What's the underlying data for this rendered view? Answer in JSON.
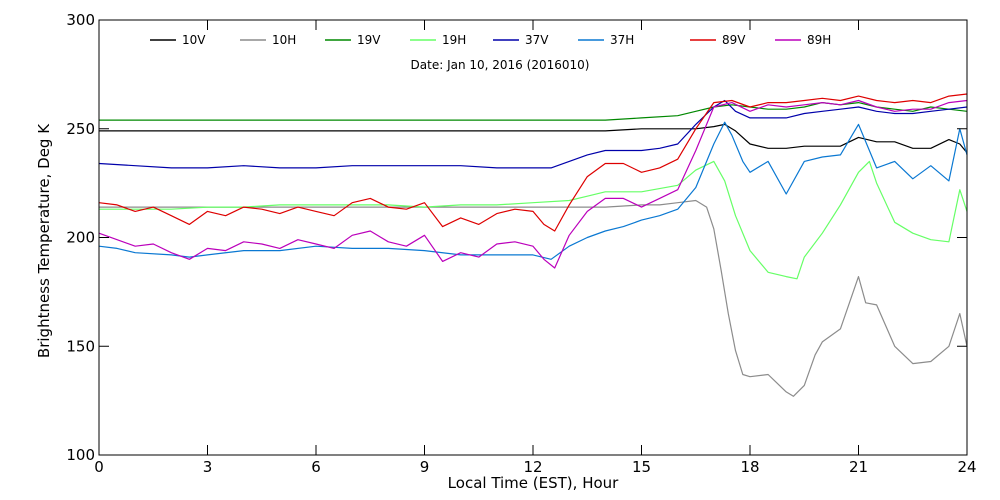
{
  "chart_data": {
    "type": "line",
    "title": "Date: Jan 10, 2016 (2016010)",
    "xlabel": "Local Time (EST), Hour",
    "ylabel": "Brightness Temperature, Deg K",
    "xlim": [
      0,
      24
    ],
    "ylim": [
      100,
      300
    ],
    "xticks": [
      0,
      3,
      6,
      9,
      12,
      15,
      18,
      21,
      24
    ],
    "yticks": [
      100,
      150,
      200,
      250,
      300
    ],
    "grid": false,
    "legend_position": "top",
    "series": [
      {
        "name": "10V",
        "color": "#000000",
        "x": [
          0,
          1,
          2,
          3,
          4,
          5,
          6,
          7,
          8,
          9,
          10,
          11,
          12,
          13,
          14,
          15,
          16,
          16.5,
          17,
          17.3,
          17.6,
          18,
          18.5,
          19,
          19.5,
          20,
          20.5,
          21,
          21.5,
          22,
          22.5,
          23,
          23.5,
          23.8,
          24
        ],
        "y": [
          249,
          249,
          249,
          249,
          249,
          249,
          249,
          249,
          249,
          249,
          249,
          249,
          249,
          249,
          249,
          250,
          250,
          250,
          251,
          252,
          249,
          243,
          241,
          241,
          242,
          242,
          242,
          246,
          244,
          244,
          241,
          241,
          245,
          243,
          239
        ]
      },
      {
        "name": "10H",
        "color": "#8c8c8c",
        "x": [
          0,
          1,
          2,
          3,
          4,
          5,
          6,
          7,
          8,
          9,
          10,
          11,
          12,
          13,
          14,
          15,
          15.5,
          16,
          16.5,
          16.8,
          17,
          17.2,
          17.4,
          17.6,
          17.8,
          18,
          18.5,
          19,
          19.2,
          19.5,
          19.8,
          20,
          20.5,
          21,
          21.2,
          21.5,
          22,
          22.5,
          23,
          23.5,
          23.8,
          24
        ],
        "y": [
          214,
          214,
          214,
          214,
          214,
          214,
          214,
          214,
          214,
          214,
          214,
          214,
          214,
          214,
          214,
          215,
          215,
          216,
          217,
          214,
          204,
          185,
          165,
          148,
          137,
          136,
          137,
          129,
          127,
          132,
          146,
          152,
          158,
          182,
          170,
          169,
          150,
          142,
          143,
          150,
          165,
          150
        ]
      },
      {
        "name": "19V",
        "color": "#008800",
        "x": [
          0,
          2,
          4,
          6,
          8,
          10,
          12,
          13,
          14,
          15,
          16,
          16.5,
          17,
          17.5,
          18,
          18.5,
          19,
          19.5,
          20,
          20.5,
          21,
          21.5,
          22,
          22.5,
          23,
          23.5,
          24
        ],
        "y": [
          254,
          254,
          254,
          254,
          254,
          254,
          254,
          254,
          254,
          255,
          256,
          258,
          260,
          261,
          260,
          259,
          259,
          260,
          262,
          261,
          262,
          260,
          259,
          258,
          260,
          259,
          258
        ]
      },
      {
        "name": "19H",
        "color": "#66ff66",
        "x": [
          0,
          1,
          2,
          3,
          4,
          5,
          6,
          7,
          8,
          9,
          10,
          11,
          12,
          13,
          13.5,
          14,
          15,
          16,
          16.5,
          17,
          17.3,
          17.6,
          18,
          18.5,
          19,
          19.3,
          19.5,
          20,
          20.5,
          21,
          21.3,
          21.5,
          22,
          22.5,
          23,
          23.5,
          23.8,
          24
        ],
        "y": [
          213,
          213,
          213,
          214,
          214,
          215,
          215,
          215,
          215,
          214,
          215,
          215,
          216,
          217,
          219,
          221,
          221,
          224,
          231,
          235,
          226,
          210,
          194,
          184,
          182,
          181,
          191,
          202,
          215,
          230,
          235,
          225,
          207,
          202,
          199,
          198,
          222,
          212
        ]
      },
      {
        "name": "37V",
        "color": "#0000aa",
        "x": [
          0,
          1,
          2,
          3,
          4,
          5,
          6,
          7,
          8,
          9,
          10,
          11,
          12,
          12.5,
          13,
          13.5,
          14,
          15,
          15.5,
          16,
          16.5,
          17,
          17.3,
          17.6,
          18,
          18.5,
          19,
          19.5,
          20,
          20.5,
          21,
          21.5,
          22,
          22.5,
          23,
          23.5,
          24
        ],
        "y": [
          234,
          233,
          232,
          232,
          233,
          232,
          232,
          233,
          233,
          233,
          233,
          232,
          232,
          232,
          235,
          238,
          240,
          240,
          241,
          243,
          252,
          260,
          263,
          258,
          255,
          255,
          255,
          257,
          258,
          259,
          260,
          258,
          257,
          257,
          258,
          259,
          260
        ]
      },
      {
        "name": "37H",
        "color": "#0a78d2",
        "x": [
          0,
          0.5,
          1,
          2,
          2.5,
          3,
          4,
          5,
          6,
          7,
          8,
          9,
          10,
          11,
          12,
          12.5,
          13,
          13.5,
          14,
          14.5,
          15,
          15.5,
          16,
          16.5,
          17,
          17.3,
          17.5,
          17.8,
          18,
          18.5,
          19,
          19.5,
          20,
          20.5,
          21,
          21.5,
          22,
          22.5,
          23,
          23.5,
          23.8,
          24
        ],
        "y": [
          196,
          195,
          193,
          192,
          191,
          192,
          194,
          194,
          196,
          195,
          195,
          194,
          192,
          192,
          192,
          190,
          196,
          200,
          203,
          205,
          208,
          210,
          213,
          223,
          243,
          253,
          247,
          235,
          230,
          235,
          220,
          235,
          237,
          238,
          252,
          232,
          235,
          227,
          233,
          226,
          250,
          238
        ]
      },
      {
        "name": "89V",
        "color": "#dd0000",
        "x": [
          0,
          0.5,
          1,
          1.5,
          2,
          2.5,
          3,
          3.5,
          4,
          4.5,
          5,
          5.5,
          6,
          6.5,
          7,
          7.5,
          8,
          8.5,
          9,
          9.5,
          10,
          10.5,
          11,
          11.5,
          12,
          12.3,
          12.6,
          13,
          13.5,
          14,
          14.5,
          15,
          15.5,
          16,
          16.5,
          17,
          17.5,
          18,
          18.5,
          19,
          19.5,
          20,
          20.5,
          21,
          21.5,
          22,
          22.5,
          23,
          23.5,
          24
        ],
        "y": [
          216,
          215,
          212,
          214,
          210,
          206,
          212,
          210,
          214,
          213,
          211,
          214,
          212,
          210,
          216,
          218,
          214,
          213,
          216,
          205,
          209,
          206,
          211,
          213,
          212,
          206,
          203,
          215,
          228,
          234,
          234,
          230,
          232,
          236,
          250,
          262,
          263,
          260,
          262,
          262,
          263,
          264,
          263,
          265,
          263,
          262,
          263,
          262,
          265,
          266
        ]
      },
      {
        "name": "89H",
        "color": "#bb00bb",
        "x": [
          0,
          0.5,
          1,
          1.5,
          2,
          2.5,
          3,
          3.5,
          4,
          4.5,
          5,
          5.5,
          6,
          6.5,
          7,
          7.5,
          8,
          8.5,
          9,
          9.5,
          10,
          10.5,
          11,
          11.5,
          12,
          12.3,
          12.6,
          13,
          13.5,
          14,
          14.5,
          15,
          15.5,
          16,
          16.5,
          17,
          17.5,
          18,
          18.5,
          19,
          19.5,
          20,
          20.5,
          21,
          21.5,
          22,
          22.5,
          23,
          23.5,
          24
        ],
        "y": [
          202,
          199,
          196,
          197,
          193,
          190,
          195,
          194,
          198,
          197,
          195,
          199,
          197,
          195,
          201,
          203,
          198,
          196,
          201,
          189,
          193,
          191,
          197,
          198,
          196,
          190,
          186,
          201,
          212,
          218,
          218,
          214,
          218,
          222,
          240,
          260,
          262,
          258,
          261,
          260,
          261,
          262,
          261,
          263,
          260,
          258,
          259,
          259,
          262,
          263
        ]
      }
    ]
  }
}
